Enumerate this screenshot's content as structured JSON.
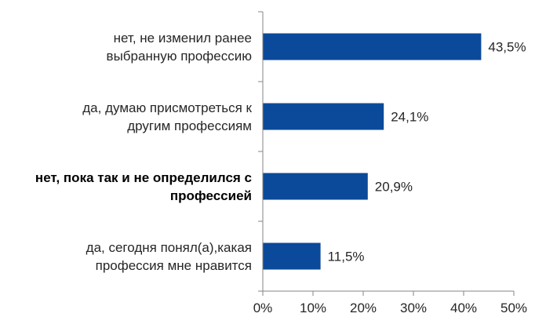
{
  "chart_data": {
    "type": "bar",
    "orientation": "horizontal",
    "categories": [
      {
        "lines": [
          "нет, не изменил ранее",
          "выбранную профессию"
        ],
        "bold": false
      },
      {
        "lines": [
          "да, думаю присмотреться к",
          "другим профессиям"
        ],
        "bold": false
      },
      {
        "lines": [
          "нет, пока так и не определился с",
          "профессией"
        ],
        "bold": true
      },
      {
        "lines": [
          "да, сегодня понял(а),какая",
          "профессия мне нравится"
        ],
        "bold": false
      }
    ],
    "values": [
      43.5,
      24.1,
      20.9,
      11.5
    ],
    "value_labels": [
      "43,5%",
      "24,1%",
      "20,9%",
      "11,5%"
    ],
    "xlim": [
      0,
      50
    ],
    "x_ticks": [
      0,
      10,
      20,
      30,
      40,
      50
    ],
    "x_tick_labels": [
      "0%",
      "10%",
      "20%",
      "30%",
      "40%",
      "50%"
    ],
    "bar_color": "#0b4a9a",
    "grid": false,
    "legend": "none",
    "title": "",
    "xlabel": "",
    "ylabel": ""
  }
}
